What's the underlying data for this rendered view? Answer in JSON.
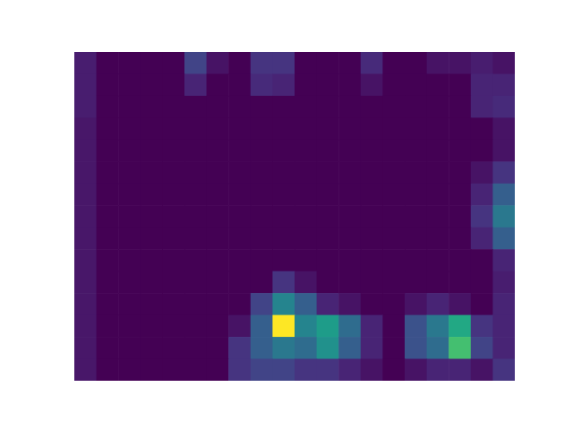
{
  "chart_data": {
    "type": "heatmap",
    "tick_labels": false,
    "cells": [
      [
        0.08,
        0,
        0,
        0,
        0,
        0.2,
        0.05,
        0,
        0.15,
        0.15,
        0,
        0,
        0,
        0.12,
        0,
        0,
        0.05,
        0.05,
        0.08,
        0.05
      ],
      [
        0.08,
        0,
        0,
        0,
        0,
        0.1,
        0,
        0,
        0.12,
        0.1,
        0,
        0,
        0,
        0.05,
        0,
        0,
        0,
        0,
        0.1,
        0.1
      ],
      [
        0.08,
        0,
        0,
        0,
        0,
        0,
        0,
        0,
        0,
        0,
        0,
        0,
        0,
        0,
        0,
        0,
        0,
        0,
        0.1,
        0.12
      ],
      [
        0.06,
        0,
        0,
        0,
        0,
        0,
        0,
        0,
        0,
        0,
        0,
        0,
        0,
        0,
        0,
        0,
        0,
        0,
        0,
        0.05
      ],
      [
        0.06,
        0,
        0,
        0,
        0,
        0,
        0,
        0,
        0,
        0,
        0,
        0,
        0,
        0,
        0,
        0,
        0,
        0,
        0,
        0.05
      ],
      [
        0.06,
        0,
        0,
        0,
        0,
        0,
        0,
        0,
        0,
        0,
        0,
        0,
        0,
        0,
        0,
        0,
        0,
        0,
        0.05,
        0.15
      ],
      [
        0.06,
        0,
        0,
        0,
        0,
        0,
        0,
        0,
        0,
        0,
        0,
        0,
        0,
        0,
        0,
        0,
        0,
        0,
        0.1,
        0.3
      ],
      [
        0.06,
        0,
        0,
        0,
        0,
        0,
        0,
        0,
        0,
        0,
        0,
        0,
        0,
        0,
        0,
        0,
        0,
        0,
        0.15,
        0.4
      ],
      [
        0.06,
        0,
        0,
        0,
        0,
        0,
        0,
        0,
        0,
        0,
        0,
        0,
        0,
        0,
        0,
        0,
        0,
        0,
        0.1,
        0.3
      ],
      [
        0.06,
        0,
        0,
        0,
        0,
        0,
        0,
        0,
        0,
        0,
        0,
        0,
        0,
        0,
        0,
        0,
        0,
        0,
        0,
        0.1
      ],
      [
        0.06,
        0,
        0,
        0,
        0,
        0,
        0,
        0,
        0,
        0.15,
        0.05,
        0,
        0,
        0,
        0,
        0,
        0,
        0,
        0,
        0.08
      ],
      [
        0.06,
        0,
        0,
        0,
        0,
        0,
        0,
        0,
        0.2,
        0.45,
        0.3,
        0.1,
        0.05,
        0,
        0,
        0.05,
        0.1,
        0.05,
        0,
        0.1
      ],
      [
        0.06,
        0,
        0,
        0,
        0,
        0,
        0,
        0.05,
        0.3,
        1.0,
        0.45,
        0.55,
        0.35,
        0.1,
        0,
        0.25,
        0.4,
        0.6,
        0.15,
        0.1
      ],
      [
        0.06,
        0,
        0,
        0,
        0,
        0,
        0,
        0.15,
        0.3,
        0.4,
        0.35,
        0.5,
        0.3,
        0.1,
        0,
        0.25,
        0.35,
        0.7,
        0.2,
        0.1
      ],
      [
        0.06,
        0,
        0,
        0,
        0,
        0,
        0,
        0.15,
        0.2,
        0.2,
        0.15,
        0.15,
        0.1,
        0.05,
        0,
        0.05,
        0.1,
        0.1,
        0.05,
        0.15
      ]
    ]
  }
}
